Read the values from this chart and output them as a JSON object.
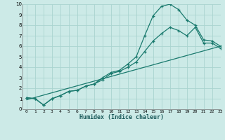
{
  "xlabel": "Humidex (Indice chaleur)",
  "bg_color": "#cceae7",
  "grid_color": "#aad4d0",
  "line_color": "#1a7a6e",
  "xlim": [
    -0.5,
    23
  ],
  "ylim": [
    0,
    10
  ],
  "xticks": [
    0,
    1,
    2,
    3,
    4,
    5,
    6,
    7,
    8,
    9,
    10,
    11,
    12,
    13,
    14,
    15,
    16,
    17,
    18,
    19,
    20,
    21,
    22,
    23
  ],
  "yticks": [
    0,
    1,
    2,
    3,
    4,
    5,
    6,
    7,
    8,
    9,
    10
  ],
  "line1_x": [
    0,
    1,
    2,
    3,
    4,
    5,
    6,
    7,
    8,
    9,
    10,
    11,
    12,
    13,
    14,
    15,
    16,
    17,
    18,
    19,
    20,
    21,
    22,
    23
  ],
  "line1_y": [
    1.1,
    1.0,
    0.4,
    1.0,
    1.3,
    1.7,
    1.8,
    2.2,
    2.4,
    3.0,
    3.5,
    3.7,
    4.3,
    5.0,
    7.0,
    8.9,
    9.8,
    10.0,
    9.5,
    8.5,
    8.0,
    6.6,
    6.5,
    6.0
  ],
  "line2_x": [
    0,
    1,
    2,
    3,
    4,
    5,
    6,
    7,
    8,
    9,
    10,
    11,
    12,
    13,
    14,
    15,
    16,
    17,
    18,
    19,
    20,
    21,
    22,
    23
  ],
  "line2_y": [
    1.1,
    1.0,
    0.4,
    1.0,
    1.3,
    1.7,
    1.8,
    2.2,
    2.4,
    2.8,
    3.4,
    3.6,
    4.0,
    4.5,
    5.5,
    6.5,
    7.2,
    7.8,
    7.5,
    7.0,
    7.8,
    6.3,
    6.3,
    5.8
  ],
  "line3_x": [
    0,
    23
  ],
  "line3_y": [
    0.9,
    6.0
  ]
}
